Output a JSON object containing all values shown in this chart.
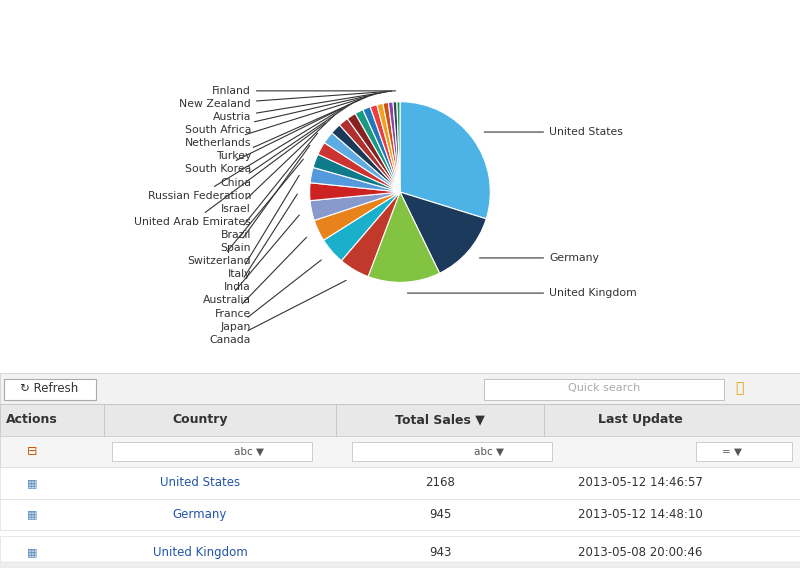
{
  "countries": [
    "United States",
    "Germany",
    "United Kingdom",
    "Canada",
    "Japan",
    "France",
    "Australia",
    "India",
    "Italy",
    "Switzerland",
    "Spain",
    "Brazil",
    "United Arab Emirates",
    "Israel",
    "Russian Federation",
    "China",
    "South Korea",
    "Turkey",
    "Netherlands",
    "South Africa",
    "Austria",
    "New Zealand",
    "Finland"
  ],
  "values": [
    2168,
    945,
    943,
    400,
    350,
    280,
    260,
    230,
    200,
    180,
    170,
    160,
    140,
    130,
    120,
    110,
    100,
    90,
    80,
    70,
    60,
    50,
    40
  ],
  "colors": [
    "#4db3e6",
    "#1c3a5c",
    "#82c341",
    "#c0392b",
    "#1ab0cc",
    "#e8821a",
    "#8899cc",
    "#cc2222",
    "#5599dd",
    "#0e7a8a",
    "#cc3333",
    "#5dade2",
    "#1a3a5a",
    "#b03030",
    "#882222",
    "#1a9a80",
    "#2277bb",
    "#e84040",
    "#f0a020",
    "#d05010",
    "#8844aa",
    "#334455",
    "#229955"
  ],
  "table_rows": [
    [
      "United States",
      "2168",
      "2013-05-12 14:46:57"
    ],
    [
      "Germany",
      "945",
      "2013-05-12 14:48:10"
    ],
    [
      "United Kingdom",
      "943",
      "2013-05-08 20:00:46"
    ]
  ],
  "table_headers": [
    "Actions",
    "Country",
    "Total Sales",
    "Last Update"
  ],
  "label_color": "#333333",
  "bg_color": "#ffffff"
}
